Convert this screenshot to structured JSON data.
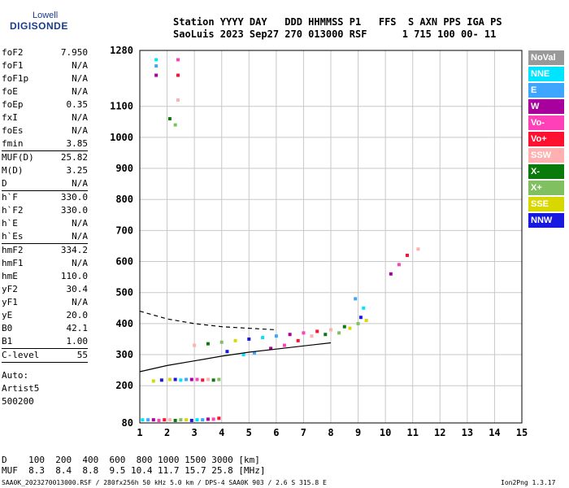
{
  "logo": {
    "line1": "Lowell",
    "line2": "DIGISONDE"
  },
  "header": {
    "line1": "Station YYYY DAY   DDD HHMMSS P1   FFS  S AXN PPS IGA PS",
    "line2": "SaoLuis 2023 Sep27 270 013000 RSF      1 715 100 00- 11"
  },
  "params": [
    {
      "label": "foF2",
      "value": "7.950"
    },
    {
      "label": "foF1",
      "value": "N/A"
    },
    {
      "label": "foF1p",
      "value": "N/A"
    },
    {
      "label": "foE",
      "value": "N/A"
    },
    {
      "label": "foEp",
      "value": "0.35"
    },
    {
      "label": "fxI",
      "value": "N/A"
    },
    {
      "label": "foEs",
      "value": "N/A"
    },
    {
      "label": "fmin",
      "value": "3.85"
    },
    {
      "label": "MUF(D)",
      "value": "25.82"
    },
    {
      "label": "M(D)",
      "value": "3.25"
    },
    {
      "label": "D",
      "value": "N/A"
    },
    {
      "label": "h`F",
      "value": "330.0"
    },
    {
      "label": "h`F2",
      "value": "330.0"
    },
    {
      "label": "h`E",
      "value": "N/A"
    },
    {
      "label": "h`Es",
      "value": "N/A"
    },
    {
      "label": "hmF2",
      "value": "334.2"
    },
    {
      "label": "hmF1",
      "value": "N/A"
    },
    {
      "label": "hmE",
      "value": "110.0"
    },
    {
      "label": "yF2",
      "value": "30.4"
    },
    {
      "label": "yF1",
      "value": "N/A"
    },
    {
      "label": "yE",
      "value": "20.0"
    },
    {
      "label": "B0",
      "value": "42.1"
    },
    {
      "label": "B1",
      "value": "1.00"
    },
    {
      "label": "C-level",
      "value": "55"
    }
  ],
  "footer_info": {
    "auto": "Auto:",
    "artist": "Artist5",
    "code": "500200"
  },
  "legend": [
    {
      "label": "NoVal",
      "color": "#999999"
    },
    {
      "label": "NNE",
      "color": "#00e5ff"
    },
    {
      "label": "E",
      "color": "#3ea6ff"
    },
    {
      "label": "W",
      "color": "#a8009c"
    },
    {
      "label": "Vo-",
      "color": "#ff40b8"
    },
    {
      "label": "Vo+",
      "color": "#ff1030"
    },
    {
      "label": "SSW",
      "color": "#ffb0b0"
    },
    {
      "label": "X-",
      "color": "#0a7a0a"
    },
    {
      "label": "X+",
      "color": "#80c060"
    },
    {
      "label": "SSE",
      "color": "#d8d800"
    },
    {
      "label": "NNW",
      "color": "#1818e0"
    }
  ],
  "chart_data": {
    "type": "scatter",
    "x_ticks": [
      1,
      2,
      3,
      4,
      5,
      6,
      7,
      8,
      9,
      10,
      11,
      12,
      13,
      14,
      15
    ],
    "y_ticks": [
      80,
      200,
      300,
      400,
      500,
      600,
      700,
      800,
      900,
      1000,
      1100,
      1280
    ],
    "xlim": [
      1,
      15
    ],
    "ylim": [
      80,
      1280
    ],
    "grid": true,
    "series": [
      {
        "points": [
          [
            1.6,
            1250
          ],
          [
            1.6,
            1230
          ],
          [
            1.6,
            1200
          ],
          [
            2.4,
            1250
          ],
          [
            2.4,
            1200
          ],
          [
            2.4,
            1120
          ],
          [
            2.1,
            1060
          ],
          [
            2.3,
            1040
          ]
        ]
      },
      {
        "points": [
          [
            2.1,
            220
          ],
          [
            2.3,
            220
          ],
          [
            2.5,
            218
          ],
          [
            2.7,
            220
          ],
          [
            2.9,
            220
          ],
          [
            3.1,
            220
          ],
          [
            3.3,
            218
          ],
          [
            3.5,
            220
          ],
          [
            3.7,
            218
          ],
          [
            3.9,
            220
          ],
          [
            1.5,
            215
          ],
          [
            1.8,
            218
          ]
        ]
      },
      {
        "points": [
          [
            1.1,
            90
          ],
          [
            1.3,
            90
          ],
          [
            1.5,
            90
          ],
          [
            1.7,
            88
          ],
          [
            1.9,
            90
          ],
          [
            2.1,
            90
          ],
          [
            2.3,
            88
          ],
          [
            2.5,
            90
          ],
          [
            2.7,
            90
          ],
          [
            2.9,
            88
          ],
          [
            3.1,
            90
          ],
          [
            3.3,
            90
          ],
          [
            3.5,
            92
          ],
          [
            3.7,
            92
          ],
          [
            3.9,
            95
          ]
        ]
      },
      {
        "points": [
          [
            3.0,
            330
          ],
          [
            3.5,
            335
          ],
          [
            4.0,
            340
          ],
          [
            4.5,
            345
          ],
          [
            5.0,
            350
          ],
          [
            5.5,
            355
          ],
          [
            6.0,
            360
          ],
          [
            6.5,
            365
          ],
          [
            7.0,
            370
          ],
          [
            7.5,
            375
          ],
          [
            8.0,
            380
          ],
          [
            8.5,
            390
          ],
          [
            9.0,
            400
          ],
          [
            9.3,
            410
          ],
          [
            4.2,
            310
          ],
          [
            4.8,
            300
          ],
          [
            5.2,
            305
          ],
          [
            5.8,
            320
          ],
          [
            6.3,
            330
          ],
          [
            6.8,
            345
          ],
          [
            7.3,
            360
          ],
          [
            7.8,
            365
          ],
          [
            8.3,
            370
          ],
          [
            8.7,
            385
          ],
          [
            9.1,
            420
          ],
          [
            9.2,
            450
          ],
          [
            8.9,
            480
          ],
          [
            10.2,
            560
          ],
          [
            10.5,
            590
          ],
          [
            10.8,
            620
          ],
          [
            11.2,
            640
          ]
        ]
      }
    ],
    "lines": [
      {
        "name": "dashed",
        "style": "dashed",
        "points": [
          [
            1.0,
            440
          ],
          [
            2.0,
            415
          ],
          [
            3.0,
            400
          ],
          [
            4.0,
            390
          ],
          [
            5.0,
            385
          ],
          [
            6.0,
            380
          ]
        ]
      },
      {
        "name": "solid",
        "style": "solid",
        "points": [
          [
            1.0,
            245
          ],
          [
            2.0,
            265
          ],
          [
            3.0,
            280
          ],
          [
            4.0,
            295
          ],
          [
            5.0,
            308
          ],
          [
            6.0,
            318
          ],
          [
            7.0,
            328
          ],
          [
            8.0,
            338
          ]
        ]
      }
    ]
  },
  "distance_row": {
    "label": "D  ",
    "values": "  100  200  400  600  800 1000 1500 3000 [km]"
  },
  "muf_row": {
    "label": "MUF",
    "values": "  8.3  8.4  8.8  9.5 10.4 11.7 15.7 25.8 [MHz]"
  },
  "footer": "SAA0K_2023270013000.RSF / 280fx256h 50 kHz 5.0 km / DPS-4 SAA0K 903 / 2.6 S 315.8 E",
  "version": "Ion2Png 1.3.17"
}
